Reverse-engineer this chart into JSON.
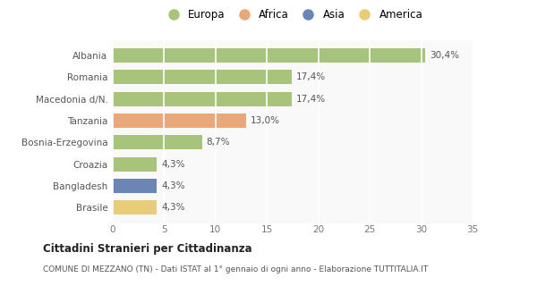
{
  "categories": [
    "Albania",
    "Romania",
    "Macedonia d/N.",
    "Tanzania",
    "Bosnia-Erzegovina",
    "Croazia",
    "Bangladesh",
    "Brasile"
  ],
  "values": [
    30.4,
    17.4,
    17.4,
    13.0,
    8.7,
    4.3,
    4.3,
    4.3
  ],
  "labels": [
    "30,4%",
    "17,4%",
    "17,4%",
    "13,0%",
    "8,7%",
    "4,3%",
    "4,3%",
    "4,3%"
  ],
  "bar_colors": [
    "#a8c47a",
    "#a8c47a",
    "#a8c47a",
    "#e8a87c",
    "#a8c47a",
    "#a8c47a",
    "#6b85b5",
    "#e8cc7a"
  ],
  "legend_labels": [
    "Europa",
    "Africa",
    "Asia",
    "America"
  ],
  "legend_colors": [
    "#a8c47a",
    "#e8a87c",
    "#6b85b5",
    "#e8cc7a"
  ],
  "xlim": [
    0,
    35
  ],
  "xticks": [
    0,
    5,
    10,
    15,
    20,
    25,
    30,
    35
  ],
  "title": "Cittadini Stranieri per Cittadinanza",
  "subtitle": "COMUNE DI MEZZANO (TN) - Dati ISTAT al 1° gennaio di ogni anno - Elaborazione TUTTITALIA.IT",
  "bg_color": "#ffffff",
  "plot_bg_color": "#f9f9f9",
  "grid_color": "#e8e8e8"
}
